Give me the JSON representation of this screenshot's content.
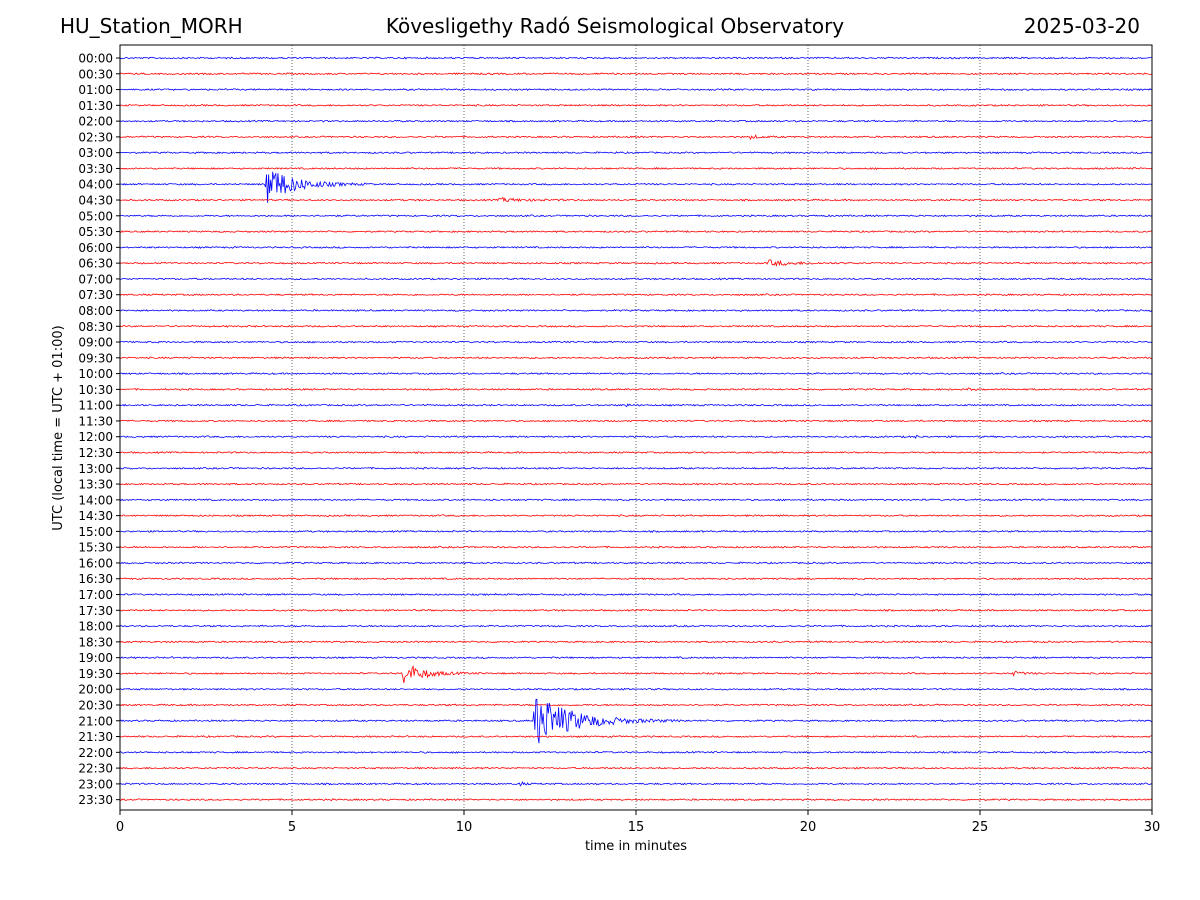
{
  "header": {
    "station": "HU_Station_MORH",
    "title": "Kövesligethy Radó Seismological Observatory",
    "date": "2025-03-20"
  },
  "chart_data": {
    "type": "line",
    "title": "Kövesligethy Radó Seismological Observatory",
    "xlabel": "time in minutes",
    "ylabel": "UTC (local time = UTC + 01:00)",
    "xlim": [
      0,
      30
    ],
    "xticks": [
      0,
      5,
      10,
      15,
      20,
      25,
      30
    ],
    "grid_x": true,
    "row_labels": [
      "00:00",
      "00:30",
      "01:00",
      "01:30",
      "02:00",
      "02:30",
      "03:00",
      "03:30",
      "04:00",
      "04:30",
      "05:00",
      "05:30",
      "06:00",
      "06:30",
      "07:00",
      "07:30",
      "08:00",
      "08:30",
      "09:00",
      "09:30",
      "10:00",
      "10:30",
      "11:00",
      "11:30",
      "12:00",
      "12:30",
      "13:00",
      "13:30",
      "14:00",
      "14:30",
      "15:00",
      "15:30",
      "16:00",
      "16:30",
      "17:00",
      "17:30",
      "18:00",
      "18:30",
      "19:00",
      "19:30",
      "20:00",
      "20:30",
      "21:00",
      "21:30",
      "22:00",
      "22:30",
      "23:00",
      "23:30"
    ],
    "colors": [
      "#0000ff",
      "#ff0000"
    ],
    "events": [
      {
        "row": "04:00",
        "start_min": 4.2,
        "peak": 22,
        "duration_min": 3.2
      },
      {
        "row": "19:30",
        "start_min": 8.2,
        "peak": 12,
        "duration_min": 2.4
      },
      {
        "row": "21:00",
        "start_min": 12.0,
        "peak": 30,
        "duration_min": 4.5
      },
      {
        "row": "06:30",
        "start_min": 18.8,
        "peak": 3,
        "duration_min": 3.0
      },
      {
        "row": "04:30",
        "start_min": 11.0,
        "peak": 2,
        "duration_min": 3.0
      },
      {
        "row": "19:30",
        "start_min": 25.9,
        "peak": 2.5,
        "duration_min": 1.2
      },
      {
        "row": "23:00",
        "start_min": 11.6,
        "peak": 2.5,
        "duration_min": 0.6
      },
      {
        "row": "11:00",
        "start_min": 14.7,
        "peak": 4,
        "duration_min": 0.3
      },
      {
        "row": "10:30",
        "start_min": 24.6,
        "peak": 2.5,
        "duration_min": 0.4
      },
      {
        "row": "12:00",
        "start_min": 23.1,
        "peak": 2.5,
        "duration_min": 0.3
      },
      {
        "row": "12:00",
        "start_min": 27.4,
        "peak": 2.5,
        "duration_min": 0.3
      },
      {
        "row": "02:30",
        "start_min": 18.3,
        "peak": 2,
        "duration_min": 1.2
      }
    ]
  }
}
